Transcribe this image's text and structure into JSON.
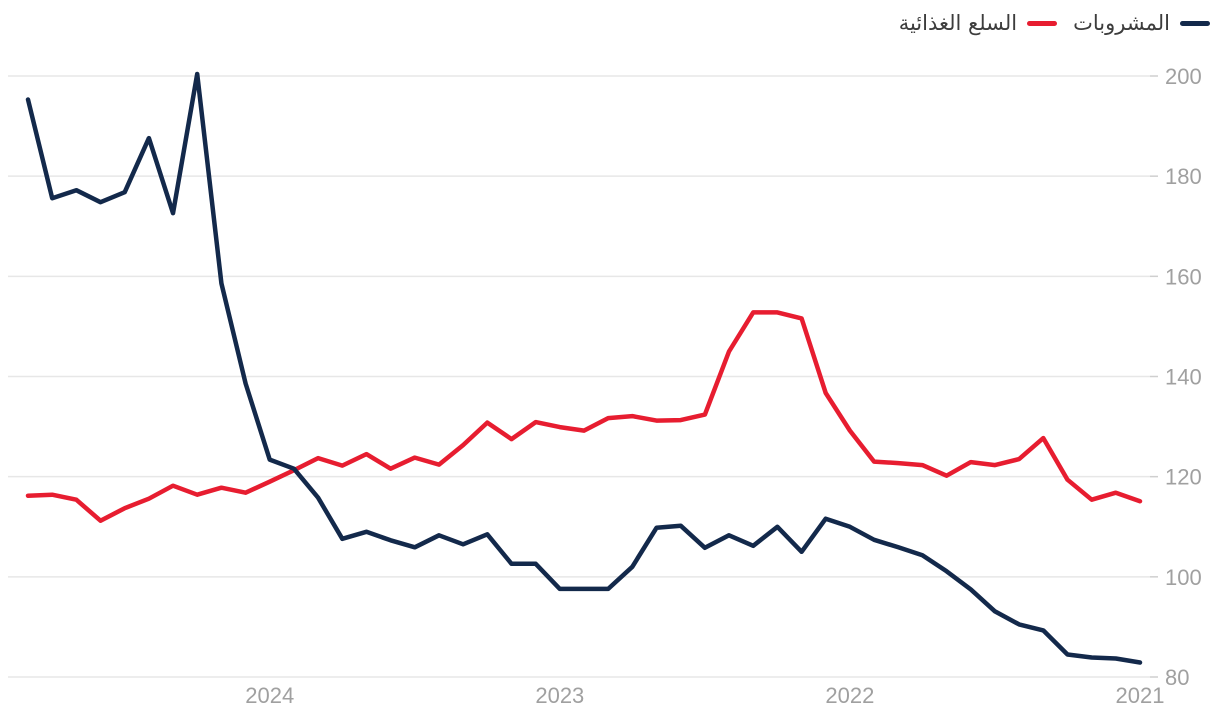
{
  "chart_data": {
    "type": "line",
    "title": "",
    "direction": "rtl",
    "frequency": "monthly",
    "x_start": "2021-01",
    "x_end": "2024-11",
    "x_tick_labels": [
      "2024",
      "2023",
      "2022",
      "2021"
    ],
    "x_tick_month_indices": [
      36,
      24,
      12,
      0
    ],
    "yticks": [
      80,
      100,
      120,
      140,
      160,
      180,
      200
    ],
    "ylim": [
      80,
      200
    ],
    "grid": true,
    "y_axis_side": "right",
    "legend_position": "top-right",
    "series": [
      {
        "name": "المشروبات",
        "color": "#13294b",
        "values": [
          82.9,
          83.7,
          83.9,
          84.5,
          89.3,
          90.5,
          93.1,
          97.5,
          101.1,
          104.3,
          105.9,
          107.4,
          110.0,
          111.6,
          105.0,
          110.0,
          106.2,
          108.3,
          105.8,
          110.2,
          109.8,
          102.0,
          97.6,
          97.6,
          97.6,
          102.6,
          102.6,
          108.5,
          106.5,
          108.3,
          105.9,
          107.3,
          109.0,
          107.6,
          115.8,
          121.6,
          123.4,
          138.6,
          158.6,
          200.4,
          172.6,
          187.6,
          176.8,
          174.8,
          177.2,
          175.6,
          195.3
        ]
      },
      {
        "name": "السلع الغذائية",
        "color": "#e71d30",
        "values": [
          115.1,
          116.8,
          115.4,
          119.4,
          127.7,
          123.5,
          122.3,
          122.9,
          120.2,
          122.3,
          122.7,
          123.0,
          129.2,
          136.7,
          151.6,
          152.8,
          152.8,
          145.0,
          132.4,
          131.3,
          131.2,
          132.1,
          131.7,
          129.2,
          129.9,
          130.9,
          127.5,
          130.8,
          126.3,
          122.4,
          123.8,
          121.6,
          124.5,
          122.2,
          123.7,
          121.3,
          119.0,
          116.8,
          117.8,
          116.4,
          118.2,
          115.6,
          113.7,
          111.2,
          115.4,
          116.4,
          116.2
        ]
      }
    ]
  },
  "colors": {
    "grid": "#e7e7e7",
    "tick": "#cfcfcf",
    "axis_text": "#a0a0a0",
    "legend_text": "#3d3d3d",
    "background": "#ffffff"
  }
}
